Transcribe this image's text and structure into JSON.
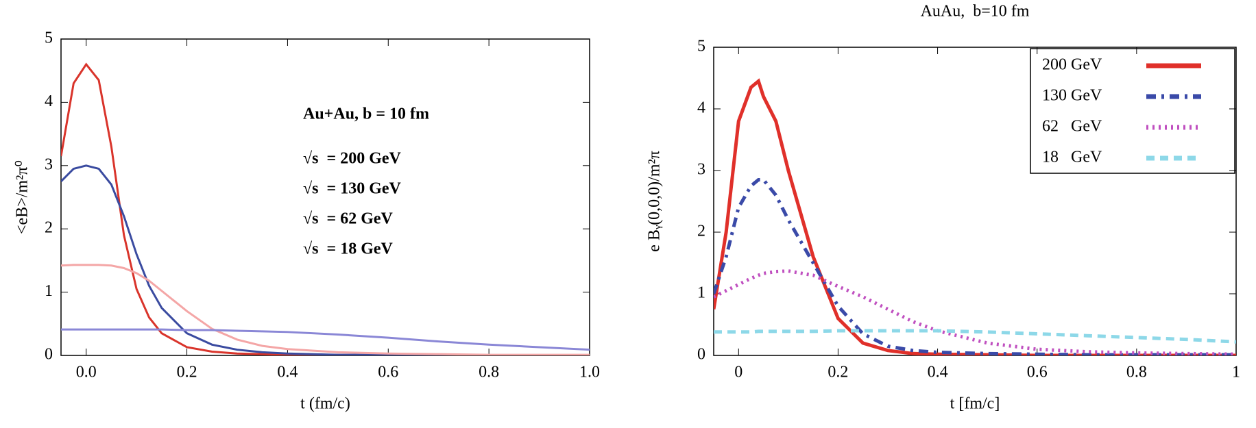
{
  "chart_data": [
    {
      "type": "line",
      "annotation": "Au+Au, b = 10 fm",
      "x_label": "t (fm/c)",
      "y_label": "<eB>/m²π⁰",
      "x": [
        -0.05,
        -0.025,
        0,
        0.025,
        0.05,
        0.075,
        0.1,
        0.125,
        0.15,
        0.2,
        0.25,
        0.3,
        0.35,
        0.4,
        0.5,
        0.6,
        0.7,
        0.8,
        0.9,
        1.0
      ],
      "xlim": [
        -0.05,
        1.0
      ],
      "ylim": [
        0,
        5
      ],
      "xticks": [
        {
          "value": 0,
          "label": "0.0"
        },
        {
          "value": 0.2,
          "label": "0.2"
        },
        {
          "value": 0.4,
          "label": "0.4"
        },
        {
          "value": 0.6,
          "label": "0.6"
        },
        {
          "value": 0.8,
          "label": "0.8"
        },
        {
          "value": 1,
          "label": "1.0"
        }
      ],
      "yticks": [
        0,
        1,
        2,
        3,
        4,
        5
      ],
      "legend": "text",
      "series": [
        {
          "name": "√s  = 200 GeV",
          "color": "#d9342b",
          "style": "solid",
          "values": [
            3.15,
            4.3,
            4.6,
            4.35,
            3.3,
            1.9,
            1.05,
            0.6,
            0.35,
            0.13,
            0.06,
            0.03,
            0.02,
            0.01,
            0.01,
            0,
            0,
            0,
            0,
            0
          ]
        },
        {
          "name": "√s  = 130 GeV",
          "color": "#3a4ba0",
          "style": "solid",
          "values": [
            2.75,
            2.95,
            3.0,
            2.95,
            2.7,
            2.2,
            1.6,
            1.1,
            0.75,
            0.35,
            0.17,
            0.09,
            0.05,
            0.03,
            0.01,
            0.01,
            0,
            0,
            0,
            0
          ]
        },
        {
          "name": "√s  = 62 GeV",
          "color": "#f4a6a6",
          "style": "solid",
          "values": [
            1.42,
            1.43,
            1.43,
            1.43,
            1.42,
            1.38,
            1.3,
            1.18,
            1.02,
            0.7,
            0.42,
            0.25,
            0.15,
            0.1,
            0.05,
            0.03,
            0.02,
            0.01,
            0.01,
            0.01
          ]
        },
        {
          "name": "√s  = 18 GeV",
          "color": "#8a87d6",
          "style": "solid",
          "values": [
            0.41,
            0.41,
            0.41,
            0.41,
            0.41,
            0.41,
            0.41,
            0.41,
            0.41,
            0.4,
            0.4,
            0.39,
            0.38,
            0.37,
            0.33,
            0.28,
            0.22,
            0.17,
            0.13,
            0.09
          ]
        }
      ]
    },
    {
      "type": "line",
      "title": "AuAu,  b=10 fm",
      "x_label": "t [fm/c]",
      "y_label": "e Bᵧ(0,0,0)/m²π",
      "x": [
        -0.05,
        -0.025,
        0,
        0.025,
        0.04,
        0.05,
        0.075,
        0.1,
        0.15,
        0.2,
        0.25,
        0.3,
        0.35,
        0.4,
        0.5,
        0.6,
        0.7,
        0.8,
        0.9,
        1.0
      ],
      "xlim": [
        -0.05,
        1
      ],
      "ylim": [
        0,
        5
      ],
      "xticks": [
        0,
        0.2,
        0.4,
        0.6,
        0.8,
        1
      ],
      "yticks": [
        0,
        1,
        2,
        3,
        4,
        5
      ],
      "legend": "box",
      "series": [
        {
          "name": "200 GeV",
          "color": "#e0302a",
          "style": "solid",
          "values": [
            0.75,
            2.0,
            3.8,
            4.35,
            4.45,
            4.2,
            3.8,
            3.0,
            1.6,
            0.6,
            0.2,
            0.08,
            0.03,
            0.02,
            0.01,
            0,
            0,
            0,
            0,
            0
          ]
        },
        {
          "name": "130 GeV",
          "color": "#3a4aa8",
          "style": "dashdot",
          "values": [
            1.0,
            1.6,
            2.4,
            2.75,
            2.85,
            2.85,
            2.6,
            2.2,
            1.5,
            0.8,
            0.35,
            0.15,
            0.08,
            0.05,
            0.03,
            0.02,
            0.01,
            0.01,
            0.01,
            0.01
          ]
        },
        {
          "name": "62   GeV",
          "color": "#c050c0",
          "style": "dotted",
          "values": [
            0.95,
            1.05,
            1.15,
            1.25,
            1.3,
            1.33,
            1.36,
            1.37,
            1.3,
            1.12,
            0.95,
            0.75,
            0.55,
            0.4,
            0.2,
            0.1,
            0.06,
            0.04,
            0.03,
            0.02
          ]
        },
        {
          "name": "18   GeV",
          "color": "#8dd8e8",
          "style": "dashed",
          "values": [
            0.38,
            0.38,
            0.38,
            0.38,
            0.39,
            0.39,
            0.39,
            0.39,
            0.39,
            0.4,
            0.4,
            0.4,
            0.4,
            0.4,
            0.38,
            0.35,
            0.32,
            0.29,
            0.26,
            0.22
          ]
        }
      ]
    }
  ]
}
